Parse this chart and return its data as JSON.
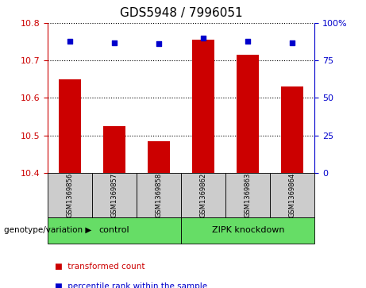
{
  "title": "GDS5948 / 7996051",
  "samples": [
    "GSM1369856",
    "GSM1369857",
    "GSM1369858",
    "GSM1369862",
    "GSM1369863",
    "GSM1369864"
  ],
  "bar_values": [
    10.65,
    10.525,
    10.485,
    10.755,
    10.715,
    10.63
  ],
  "percentile_values": [
    88,
    87,
    86,
    90,
    88,
    87
  ],
  "bar_bottom": 10.4,
  "bar_color": "#cc0000",
  "dot_color": "#0000cc",
  "ylim_left": [
    10.4,
    10.8
  ],
  "ylim_right": [
    0,
    100
  ],
  "yticks_left": [
    10.4,
    10.5,
    10.6,
    10.7,
    10.8
  ],
  "yticks_right": [
    0,
    25,
    50,
    75,
    100
  ],
  "ytick_right_labels": [
    "0",
    "25",
    "50",
    "75",
    "100%"
  ],
  "groups": [
    {
      "label": "control",
      "indices": [
        0,
        1,
        2
      ],
      "color": "#66dd66"
    },
    {
      "label": "ZIPK knockdown",
      "indices": [
        3,
        4,
        5
      ],
      "color": "#66dd66"
    }
  ],
  "group_label_prefix": "genotype/variation",
  "legend_items": [
    {
      "color": "#cc0000",
      "label": "transformed count"
    },
    {
      "color": "#0000cc",
      "label": "percentile rank within the sample"
    }
  ],
  "plot_bg": "#ffffff",
  "grid_color": "#000000",
  "tick_color_left": "#cc0000",
  "tick_color_right": "#0000cc",
  "bar_width": 0.5,
  "sample_box_color": "#cccccc",
  "arrow_color": "#888888"
}
